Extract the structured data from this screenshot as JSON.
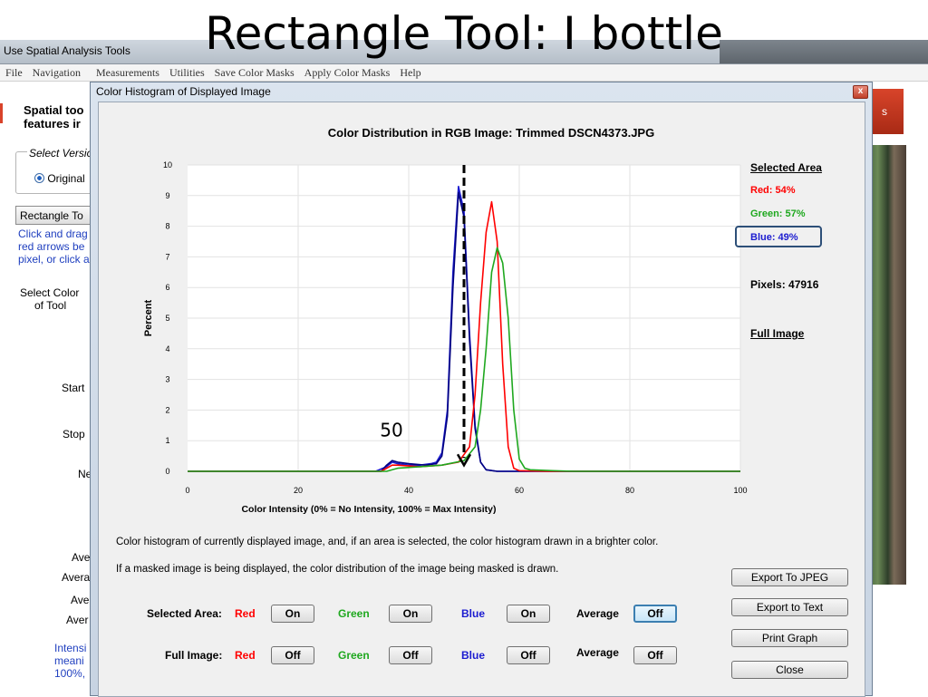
{
  "slide_title": "Rectangle Tool: I bottle",
  "main_window": {
    "title": "Use Spatial Analysis Tools",
    "menu": [
      "File",
      "Navigation",
      "Measurements",
      "Utilities",
      "Save Color Masks",
      "Apply Color Masks",
      "Help"
    ],
    "left_panel": {
      "heading_line1": "Spatial too",
      "heading_line2": "features ir",
      "select_version": "Select Versio",
      "radio_original": "Original",
      "rect_tool_button": "Rectangle To",
      "instructions": [
        "Click and drag",
        "red arrows be",
        "pixel, or click a"
      ],
      "select_color_line1": "Select Color",
      "select_color_line2": "of Tool",
      "start": "Start",
      "stop": "Stop",
      "ne": "Ne",
      "ave1": "Ave",
      "avera": "Avera",
      "ave2": "Ave",
      "aver": "Aver",
      "intensity_lines": [
        "Intensi",
        "meani",
        "100%,"
      ]
    },
    "right_button": "s"
  },
  "dialog": {
    "title": "Color Histogram of Displayed Image",
    "close_glyph": "x",
    "note1": "Color histogram of currently displayed image, and, if an area is selected, the color histogram drawn in a brighter color.",
    "note2": "If a masked image is being displayed, the color distribution of the image being masked is drawn.",
    "selected_area_row": {
      "label": "Selected Area:",
      "red": "Red",
      "red_btn": "On",
      "green": "Green",
      "green_btn": "On",
      "blue": "Blue",
      "blue_btn": "On",
      "average": "Average",
      "average_btn": "Off"
    },
    "full_image_row": {
      "label": "Full Image:",
      "red": "Red",
      "red_btn": "Off",
      "green": "Green",
      "green_btn": "Off",
      "blue": "Blue",
      "blue_btn": "Off",
      "average": "Average",
      "average_btn": "Off"
    },
    "side_buttons": [
      "Export To JPEG",
      "Export to Text",
      "Print Graph",
      "Close"
    ],
    "side_panel": {
      "selected_area": "Selected Area",
      "red": "Red: 54%",
      "green": "Green: 57%",
      "blue": "Blue: 49%",
      "pixels": "Pixels: 47916",
      "full_image": "Full Image"
    },
    "colors": {
      "red": "#ff0000",
      "green": "#1fa81f",
      "blue": "#1c1cd0",
      "dark_blue": "#000080"
    }
  },
  "chart_data": {
    "type": "line",
    "title": "Color Distribution in RGB Image: Trimmed DSCN4373.JPG",
    "xlabel": "Color Intensity (0% = No Intensity, 100% = Max Intensity)",
    "ylabel": "Percent",
    "xlim": [
      0,
      100
    ],
    "ylim": [
      0,
      10
    ],
    "x_ticks": [
      0,
      20,
      40,
      60,
      80,
      100
    ],
    "y_ticks": [
      0,
      1,
      2,
      3,
      4,
      5,
      6,
      7,
      8,
      9,
      10
    ],
    "grid": true,
    "annotation": {
      "text": "50",
      "x": 50,
      "arrow_from_y": 10,
      "arrow_to_y": 0.2
    },
    "series": [
      {
        "color": "#1c1cd0",
        "points": [
          [
            0,
            0
          ],
          [
            34,
            0
          ],
          [
            36,
            0.15
          ],
          [
            37,
            0.3
          ],
          [
            38,
            0.25
          ],
          [
            40,
            0.2
          ],
          [
            42,
            0.2
          ],
          [
            44,
            0.25
          ],
          [
            45,
            0.3
          ],
          [
            46,
            0.6
          ],
          [
            47,
            2.0
          ],
          [
            48,
            6.5
          ],
          [
            49,
            9.3
          ],
          [
            50,
            8.5
          ],
          [
            51,
            4.5
          ],
          [
            52,
            1.5
          ],
          [
            53,
            0.3
          ],
          [
            54,
            0.05
          ],
          [
            56,
            0
          ],
          [
            100,
            0
          ]
        ]
      },
      {
        "color": "#000080",
        "points": [
          [
            0,
            0
          ],
          [
            35,
            0
          ],
          [
            36,
            0.2
          ],
          [
            37,
            0.35
          ],
          [
            38,
            0.3
          ],
          [
            40,
            0.25
          ],
          [
            43,
            0.2
          ],
          [
            45,
            0.25
          ],
          [
            46,
            0.5
          ],
          [
            47,
            1.8
          ],
          [
            48,
            6.0
          ],
          [
            49,
            9.1
          ],
          [
            50,
            8.3
          ],
          [
            51,
            4.3
          ],
          [
            52,
            1.4
          ],
          [
            53,
            0.3
          ],
          [
            54,
            0.05
          ],
          [
            56,
            0
          ],
          [
            100,
            0
          ]
        ]
      },
      {
        "color": "#ff0000",
        "points": [
          [
            0,
            0
          ],
          [
            35,
            0
          ],
          [
            37,
            0.2
          ],
          [
            38,
            0.2
          ],
          [
            42,
            0.15
          ],
          [
            46,
            0.2
          ],
          [
            49,
            0.3
          ],
          [
            51,
            0.8
          ],
          [
            52,
            2.5
          ],
          [
            53,
            5.5
          ],
          [
            54,
            7.8
          ],
          [
            55,
            8.8
          ],
          [
            56,
            7.5
          ],
          [
            57,
            3.5
          ],
          [
            58,
            0.8
          ],
          [
            59,
            0.1
          ],
          [
            60,
            0.02
          ],
          [
            65,
            0
          ],
          [
            100,
            0
          ]
        ]
      },
      {
        "color": "#1fa81f",
        "points": [
          [
            0,
            0
          ],
          [
            36,
            0
          ],
          [
            38,
            0.1
          ],
          [
            42,
            0.15
          ],
          [
            46,
            0.2
          ],
          [
            50,
            0.35
          ],
          [
            52,
            0.8
          ],
          [
            53,
            2.0
          ],
          [
            54,
            4.0
          ],
          [
            55,
            6.5
          ],
          [
            56,
            7.3
          ],
          [
            57,
            6.8
          ],
          [
            58,
            5.0
          ],
          [
            59,
            2.0
          ],
          [
            60,
            0.4
          ],
          [
            61,
            0.1
          ],
          [
            62,
            0.05
          ],
          [
            66,
            0.02
          ],
          [
            70,
            0
          ],
          [
            100,
            0
          ]
        ]
      }
    ]
  }
}
